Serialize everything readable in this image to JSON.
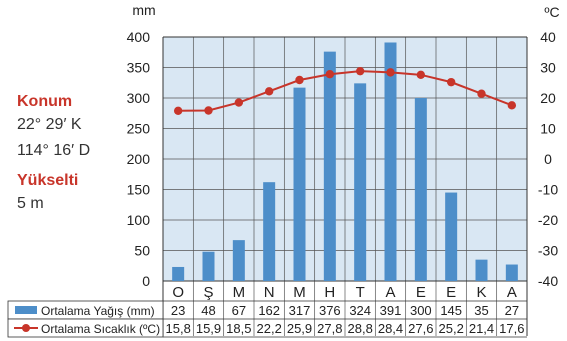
{
  "side_panel": {
    "location_label": "Konum",
    "latitude": "22° 29′ K",
    "longitude": "114° 16′ D",
    "elevation_label": "Yükselti",
    "elevation_value": "5 m"
  },
  "colors": {
    "bar": "#4d8ec9",
    "line": "#c8352a",
    "panel_bg": "#d9e7f3",
    "grid": "#555555"
  },
  "chart_data": {
    "type": "bar",
    "title": "",
    "left_unit": "mm",
    "right_unit": "ºC",
    "categories": [
      "O",
      "Ş",
      "M",
      "N",
      "M",
      "H",
      "T",
      "A",
      "E",
      "E",
      "K",
      "A"
    ],
    "left_ticks": [
      0,
      50,
      100,
      150,
      200,
      250,
      300,
      350,
      400
    ],
    "right_ticks": [
      -40,
      -30,
      -20,
      -10,
      0,
      10,
      20,
      30,
      40
    ],
    "ylim_left": [
      0,
      400
    ],
    "ylim_right": [
      -40,
      40
    ],
    "series": [
      {
        "name": "Ortalama Yağış (mm)",
        "type": "bar",
        "axis": "left",
        "values": [
          23,
          48,
          67,
          162,
          317,
          376,
          324,
          391,
          300,
          145,
          35,
          27
        ]
      },
      {
        "name": "Ortalama Sıcaklık (ºC)",
        "type": "line",
        "axis": "right",
        "values": [
          15.8,
          15.9,
          18.5,
          22.2,
          25.9,
          27.8,
          28.8,
          28.4,
          27.6,
          25.2,
          21.4,
          17.6
        ]
      }
    ],
    "table": {
      "rain_row": [
        "23",
        "48",
        "67",
        "162",
        "317",
        "376",
        "324",
        "391",
        "300",
        "145",
        "35",
        "27"
      ],
      "temp_row": [
        "15,8",
        "15,9",
        "18,5",
        "22,2",
        "25,9",
        "27,8",
        "28,8",
        "28,4",
        "27,6",
        "25,2",
        "21,4",
        "17,6"
      ]
    },
    "grid": true
  }
}
